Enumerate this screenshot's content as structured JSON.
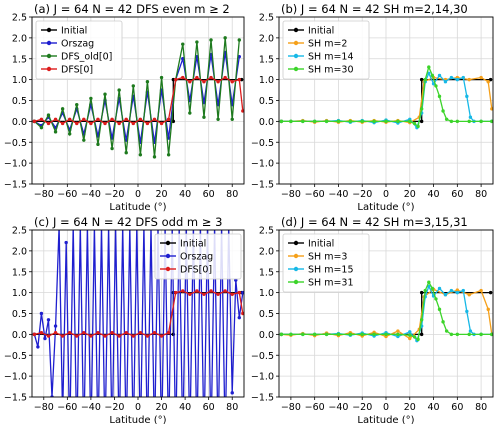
{
  "chart_data": [
    {
      "type": "line",
      "title": "(a) J = 64  N = 42  DFS  even m ≥ 2",
      "xlabel": "Latitude (°)",
      "ylabel": "",
      "xlim": [
        -90,
        90
      ],
      "ylim": [
        -1.5,
        2.5
      ],
      "xticks": [
        -80,
        -60,
        -40,
        -20,
        0,
        20,
        40,
        60,
        80
      ],
      "yticks": [
        -1.5,
        -1.0,
        -0.5,
        0.0,
        0.5,
        1.0,
        1.5,
        2.0,
        2.5
      ],
      "grid": true,
      "legend_position": "top-left",
      "series": [
        {
          "name": "Initial",
          "color": "#000000",
          "x": [
            -88,
            30,
            30,
            88
          ],
          "y": [
            0,
            0,
            1,
            1
          ]
        },
        {
          "name": "Orszag",
          "color": "#1f1fcf",
          "x": [
            -88,
            -82,
            -76,
            -70,
            -64,
            -58,
            -52,
            -46,
            -40,
            -34,
            -28,
            -22,
            -16,
            -10,
            -4,
            2,
            8,
            14,
            20,
            26,
            32,
            38,
            44,
            50,
            56,
            62,
            68,
            74,
            80,
            86
          ],
          "y": [
            0.0,
            -0.1,
            0.1,
            -0.15,
            0.2,
            -0.2,
            0.3,
            -0.3,
            0.4,
            -0.35,
            0.5,
            -0.4,
            0.55,
            -0.45,
            0.6,
            -0.5,
            0.7,
            -0.5,
            0.75,
            -0.4,
            1.0,
            1.5,
            0.5,
            1.55,
            0.45,
            1.6,
            0.4,
            1.65,
            0.4,
            1.55
          ]
        },
        {
          "name": "DFS_old[0]",
          "color": "#1e7a1e",
          "x": [
            -88,
            -82,
            -76,
            -70,
            -64,
            -58,
            -52,
            -46,
            -40,
            -34,
            -28,
            -22,
            -16,
            -10,
            -4,
            2,
            8,
            14,
            20,
            26,
            32,
            38,
            44,
            50,
            56,
            62,
            68,
            74,
            80,
            86
          ],
          "y": [
            0.0,
            -0.15,
            0.15,
            -0.25,
            0.3,
            -0.3,
            0.4,
            -0.45,
            0.55,
            -0.55,
            0.65,
            -0.65,
            0.75,
            -0.75,
            0.85,
            -0.8,
            0.95,
            -0.85,
            1.05,
            -0.8,
            1.0,
            1.85,
            0.2,
            1.9,
            0.1,
            1.95,
            0.05,
            2.0,
            0.05,
            1.95
          ]
        },
        {
          "name": "DFS[0]",
          "color": "#dd1c1c",
          "x": [
            -88,
            -82,
            -76,
            -70,
            -64,
            -58,
            -52,
            -46,
            -40,
            -34,
            -28,
            -22,
            -16,
            -10,
            -4,
            2,
            8,
            14,
            20,
            26,
            32,
            38,
            44,
            50,
            56,
            62,
            68,
            74,
            80,
            86,
            89
          ],
          "y": [
            0.0,
            0.05,
            -0.05,
            0.05,
            -0.05,
            0.05,
            -0.05,
            0.05,
            -0.05,
            0.05,
            -0.05,
            0.05,
            -0.05,
            0.05,
            -0.05,
            0.05,
            -0.05,
            0.05,
            -0.05,
            0.05,
            1.0,
            1.05,
            0.95,
            1.05,
            0.95,
            1.05,
            0.95,
            1.05,
            0.95,
            1.0,
            0.25
          ]
        }
      ]
    },
    {
      "type": "line",
      "title": "(b) J = 64  N = 42  SH  m=2,14,30",
      "xlabel": "Latitude (°)",
      "ylabel": "",
      "xlim": [
        -90,
        90
      ],
      "ylim": [
        -1.5,
        2.5
      ],
      "xticks": [
        -80,
        -60,
        -40,
        -20,
        0,
        20,
        40,
        60,
        80
      ],
      "yticks": [
        -1.5,
        -1.0,
        -0.5,
        0.0,
        0.5,
        1.0,
        1.5,
        2.0,
        2.5
      ],
      "grid": true,
      "legend_position": "top-left",
      "series": [
        {
          "name": "Initial",
          "color": "#000000",
          "x": [
            -88,
            30,
            30,
            88
          ],
          "y": [
            0,
            0,
            1,
            1
          ]
        },
        {
          "name": "SH m=2",
          "color": "#f5a01a",
          "x": [
            -88,
            -80,
            -70,
            -60,
            -50,
            -40,
            -30,
            -20,
            -10,
            0,
            10,
            20,
            28,
            32,
            40,
            50,
            60,
            70,
            80,
            86,
            89
          ],
          "y": [
            0.0,
            0.0,
            0.02,
            -0.02,
            0.02,
            -0.02,
            0.02,
            -0.02,
            0.02,
            -0.02,
            0.02,
            -0.03,
            0.1,
            0.95,
            1.05,
            1.0,
            1.05,
            1.0,
            1.05,
            0.95,
            0.3
          ]
        },
        {
          "name": "SH m=14",
          "color": "#17b8e6",
          "x": [
            -88,
            -80,
            -70,
            -60,
            -50,
            -40,
            -30,
            -20,
            -10,
            0,
            10,
            20,
            26,
            30,
            33,
            36,
            40,
            45,
            50,
            55,
            60,
            65,
            68,
            71,
            74,
            80,
            89
          ],
          "y": [
            0.0,
            0.0,
            0.0,
            0.0,
            0.0,
            0.02,
            -0.02,
            0.02,
            -0.03,
            0.03,
            -0.04,
            0.05,
            -0.15,
            0.2,
            0.95,
            1.15,
            0.9,
            1.1,
            0.95,
            1.05,
            1.0,
            1.05,
            0.6,
            0.1,
            0.0,
            0.0,
            0.0
          ]
        },
        {
          "name": "SH m=30",
          "color": "#3cd42a",
          "x": [
            -88,
            -80,
            -70,
            -60,
            -50,
            -40,
            -30,
            -20,
            -10,
            0,
            10,
            20,
            24,
            27,
            30,
            33,
            36,
            39,
            42,
            45,
            48,
            51,
            55,
            60,
            70,
            80,
            89
          ],
          "y": [
            0.0,
            0.0,
            0.0,
            0.0,
            0.0,
            0.0,
            0.0,
            0.0,
            0.0,
            0.0,
            0.0,
            0.0,
            -0.05,
            -0.12,
            0.3,
            1.0,
            1.3,
            1.1,
            0.85,
            0.6,
            0.25,
            0.05,
            0.0,
            0.0,
            0.0,
            0.0,
            0.0
          ]
        }
      ]
    },
    {
      "type": "line",
      "title": "(c) J = 64  N = 42  DFS  odd m ≥ 3",
      "xlabel": "Latitude (°)",
      "ylabel": "",
      "xlim": [
        -90,
        90
      ],
      "ylim": [
        -1.5,
        2.5
      ],
      "xticks": [
        -80,
        -60,
        -40,
        -20,
        0,
        20,
        40,
        60,
        80
      ],
      "yticks": [
        -1.5,
        -1.0,
        -0.5,
        0.0,
        0.5,
        1.0,
        1.5,
        2.0,
        2.5
      ],
      "grid": true,
      "legend_position": "top-right",
      "series": [
        {
          "name": "Initial",
          "color": "#000000",
          "x": [
            -88,
            30,
            30,
            88
          ],
          "y": [
            0,
            0,
            1,
            1
          ]
        },
        {
          "name": "Orszag",
          "color": "#1f1fcf",
          "x": [
            -88,
            -85,
            -82,
            -79,
            -76,
            -73,
            -70,
            -67,
            -64,
            -61,
            -58,
            -55,
            -52,
            -49,
            -46,
            -43,
            -40,
            -37,
            -34,
            -31,
            -28,
            -25,
            -22,
            -19,
            -16,
            -13,
            -10,
            -7,
            -4,
            -1,
            2,
            5,
            8,
            11,
            14,
            17,
            20,
            23,
            26,
            29,
            32,
            35,
            38,
            41,
            44,
            47,
            50,
            53,
            56,
            59,
            62,
            65,
            68,
            71,
            74,
            77,
            80,
            83,
            86,
            89
          ],
          "y": [
            0.0,
            -0.3,
            0.5,
            -0.1,
            0.35,
            -1.5,
            0.2,
            2.6,
            -2.0,
            2.2,
            -2.5,
            2.6,
            -2.6,
            2.6,
            -2.6,
            2.6,
            -2.6,
            2.6,
            -2.6,
            2.6,
            -2.6,
            2.6,
            -2.6,
            2.6,
            -2.6,
            2.6,
            -2.6,
            2.6,
            -2.6,
            2.6,
            -2.6,
            2.6,
            -2.6,
            2.6,
            -2.6,
            2.6,
            -2.6,
            2.6,
            -2.6,
            2.6,
            -2.6,
            2.6,
            -2.6,
            2.6,
            -2.6,
            2.6,
            -2.6,
            2.6,
            -2.6,
            2.6,
            -2.6,
            2.6,
            -2.6,
            2.6,
            -2.6,
            2.6,
            -1.4,
            1.3,
            0.4,
            1.0
          ]
        },
        {
          "name": "DFS[0]",
          "color": "#dd1c1c",
          "x": [
            -88,
            -82,
            -76,
            -70,
            -64,
            -58,
            -52,
            -46,
            -40,
            -34,
            -28,
            -22,
            -16,
            -10,
            -4,
            2,
            8,
            14,
            20,
            26,
            32,
            38,
            44,
            50,
            56,
            62,
            68,
            74,
            80,
            86,
            89
          ],
          "y": [
            0.0,
            0.04,
            -0.04,
            0.04,
            -0.04,
            0.04,
            -0.04,
            0.04,
            -0.04,
            0.04,
            -0.04,
            0.04,
            -0.04,
            0.04,
            -0.04,
            0.04,
            -0.04,
            0.04,
            -0.04,
            0.04,
            1.0,
            1.04,
            0.96,
            1.04,
            0.96,
            1.04,
            0.96,
            1.04,
            0.96,
            1.0,
            0.5
          ]
        }
      ]
    },
    {
      "type": "line",
      "title": "(d) J = 64  N = 42  SH  m=3,15,31",
      "xlabel": "Latitude (°)",
      "ylabel": "",
      "xlim": [
        -90,
        90
      ],
      "ylim": [
        -1.5,
        2.5
      ],
      "xticks": [
        -80,
        -60,
        -40,
        -20,
        0,
        20,
        40,
        60,
        80
      ],
      "yticks": [
        -1.5,
        -1.0,
        -0.5,
        0.0,
        0.5,
        1.0,
        1.5,
        2.0,
        2.5
      ],
      "grid": true,
      "legend_position": "top-left",
      "series": [
        {
          "name": "Initial",
          "color": "#000000",
          "x": [
            -88,
            30,
            30,
            88
          ],
          "y": [
            0,
            0,
            1,
            1
          ]
        },
        {
          "name": "SH m=3",
          "color": "#f5a01a",
          "x": [
            -88,
            -80,
            -70,
            -60,
            -50,
            -40,
            -30,
            -20,
            -10,
            0,
            10,
            20,
            28,
            32,
            40,
            50,
            60,
            70,
            80,
            86,
            89
          ],
          "y": [
            0.0,
            -0.02,
            0.02,
            -0.03,
            0.03,
            -0.03,
            0.04,
            -0.04,
            0.05,
            -0.05,
            0.08,
            -0.1,
            0.12,
            0.9,
            1.08,
            0.95,
            1.06,
            0.95,
            1.05,
            0.6,
            0.0
          ]
        },
        {
          "name": "SH m=15",
          "color": "#17b8e6",
          "x": [
            -88,
            -80,
            -70,
            -60,
            -50,
            -40,
            -30,
            -20,
            -10,
            0,
            10,
            20,
            26,
            30,
            33,
            36,
            40,
            45,
            50,
            55,
            60,
            65,
            68,
            71,
            74,
            80,
            89
          ],
          "y": [
            0.0,
            0.0,
            0.0,
            0.0,
            0.0,
            0.02,
            -0.02,
            0.03,
            -0.04,
            0.04,
            -0.05,
            0.06,
            -0.15,
            0.2,
            0.9,
            1.15,
            0.92,
            1.1,
            0.95,
            1.05,
            1.0,
            1.05,
            0.55,
            0.08,
            0.0,
            0.0,
            0.0
          ]
        },
        {
          "name": "SH m=31",
          "color": "#3cd42a",
          "x": [
            -88,
            -80,
            -70,
            -60,
            -50,
            -40,
            -30,
            -20,
            -10,
            0,
            10,
            20,
            24,
            27,
            30,
            33,
            36,
            39,
            42,
            45,
            48,
            51,
            55,
            60,
            70,
            80,
            89
          ],
          "y": [
            0.0,
            0.0,
            0.0,
            0.0,
            0.0,
            0.0,
            0.0,
            0.0,
            0.0,
            0.0,
            0.0,
            -0.02,
            -0.06,
            -0.12,
            0.35,
            1.05,
            1.25,
            1.1,
            0.85,
            0.6,
            0.3,
            0.08,
            0.0,
            0.0,
            0.0,
            0.0,
            0.0
          ]
        }
      ]
    }
  ]
}
